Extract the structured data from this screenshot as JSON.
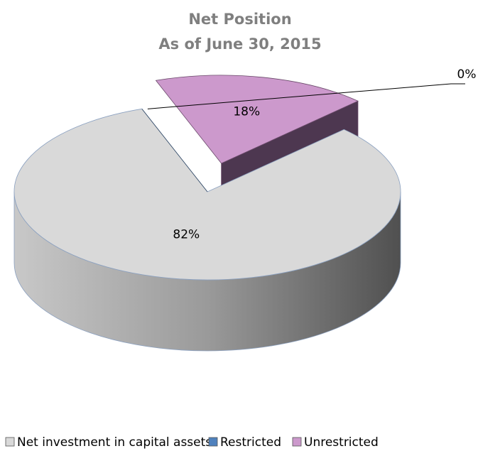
{
  "chart_data": {
    "type": "pie",
    "title": "Net Position",
    "subtitle": "As of June 30, 2015",
    "categories": [
      "Net investment in capital assets",
      "Restricted",
      "Unrestricted"
    ],
    "values": [
      82,
      0,
      18
    ],
    "value_labels": [
      "82%",
      "0%",
      "18%"
    ],
    "colors": [
      "#d9d9d9",
      "#4f81bd",
      "#cc99cc"
    ],
    "legend": "bottom"
  }
}
